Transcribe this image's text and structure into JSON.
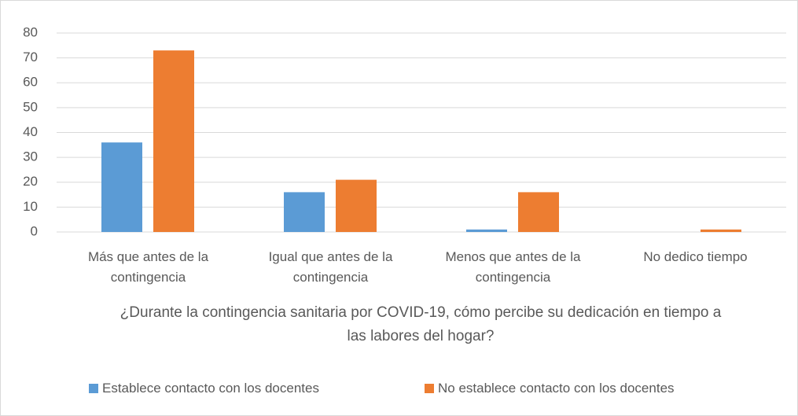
{
  "chart_data": {
    "type": "bar",
    "x_label": "¿Durante la contingencia sanitaria por COVID-19, cómo percibe su dedicación en tiempo a las labores del hogar?",
    "categories": [
      "Más que antes de la contingencia",
      "Igual que antes de la contingencia",
      "Menos que antes de la contingencia",
      "No dedico tiempo"
    ],
    "series": [
      {
        "name": "Establece contacto con los docentes",
        "color": "#5b9bd5",
        "values": [
          36,
          16,
          1,
          0
        ]
      },
      {
        "name": "No establece contacto con los docentes",
        "color": "#ed7d31",
        "values": [
          73,
          21,
          16,
          1
        ]
      }
    ],
    "ylim": [
      0,
      80
    ],
    "yticks": [
      0,
      10,
      20,
      30,
      40,
      50,
      60,
      70,
      80
    ],
    "grid": true,
    "legend": "bottom"
  }
}
